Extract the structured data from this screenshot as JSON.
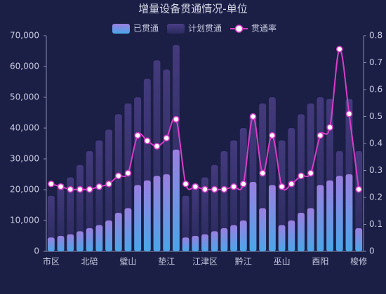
{
  "chart_data": {
    "type": "bar_line",
    "title": "增量设备贯通情况-单位",
    "categories": [
      "市区",
      null,
      null,
      null,
      "北碚",
      null,
      null,
      null,
      "璧山",
      null,
      null,
      null,
      "垫江",
      null,
      null,
      null,
      "江津区",
      null,
      null,
      null,
      "黔江",
      null,
      null,
      null,
      "巫山",
      null,
      null,
      null,
      "酉阳",
      null,
      null,
      null,
      "梭修"
    ],
    "series": [
      {
        "name": "已贯通",
        "color": "#4aa6e8",
        "values": [
          4500,
          5000,
          5500,
          6500,
          7500,
          8500,
          10000,
          12500,
          14000,
          21500,
          23000,
          24500,
          25000,
          33000,
          4500,
          5000,
          5500,
          6500,
          7500,
          8500,
          10000,
          22500,
          14000,
          21500,
          8500,
          10000,
          12500,
          14000,
          21500,
          23000,
          24500,
          25000,
          7500
        ]
      },
      {
        "name": "计划贯通",
        "color": "#4a3f86",
        "values": [
          18000,
          22000,
          24000,
          28000,
          32500,
          36000,
          39500,
          44500,
          48000,
          50000,
          56000,
          62000,
          59000,
          67000,
          18000,
          22000,
          24000,
          28000,
          32500,
          36000,
          40000,
          44000,
          48000,
          50000,
          36000,
          40000,
          44500,
          48000,
          50000,
          49500,
          32500,
          49500,
          32500
        ]
      },
      {
        "name": "贯通率",
        "color": "#d93cc9",
        "axis": "y2",
        "values": [
          0.25,
          0.24,
          0.23,
          0.23,
          0.23,
          0.24,
          0.25,
          0.28,
          0.29,
          0.43,
          0.41,
          0.39,
          0.42,
          0.49,
          0.25,
          0.24,
          0.23,
          0.23,
          0.23,
          0.24,
          0.25,
          0.5,
          0.29,
          0.43,
          0.24,
          0.25,
          0.28,
          0.29,
          0.43,
          0.46,
          0.75,
          0.51,
          0.23
        ]
      }
    ],
    "ylim": [
      0,
      70000
    ],
    "yticks": [
      0,
      {
        "value": 10000,
        "label": "10,000"
      },
      {
        "value": 20000,
        "label": "20,000"
      },
      {
        "value": 30000,
        "label": "30,000"
      },
      {
        "value": 40000,
        "label": "40,000"
      },
      {
        "value": 50000,
        "label": "50,000"
      },
      {
        "value": 60000,
        "label": "60,000"
      },
      {
        "value": 70000,
        "label": "70,000"
      }
    ],
    "y2lim": [
      0,
      0.8
    ],
    "y2ticks": [
      0,
      0.1,
      0.2,
      0.3,
      0.4,
      0.5,
      0.6,
      0.7,
      0.8
    ]
  }
}
